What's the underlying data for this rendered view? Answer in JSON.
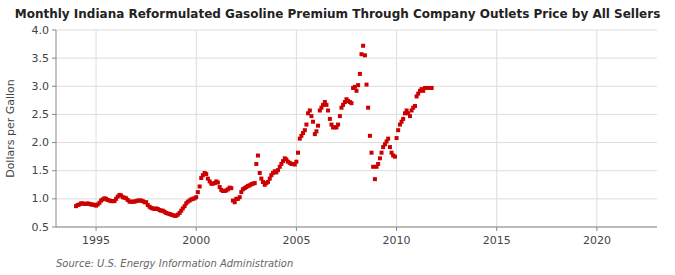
{
  "chart_data": {
    "type": "scatter",
    "title": "Monthly Indiana Reformulated Gasoline Premium Through Company Outlets Price by All Sellers",
    "ylabel": "Dollars per Gallon",
    "annotations": [
      "Source: U.S. Energy Information Administration"
    ],
    "color": "#cc0000",
    "marker": "square",
    "grid": true,
    "xlim": [
      1993.0,
      2023.0
    ],
    "ylim": [
      0.5,
      4.0
    ],
    "xticks": [
      1995,
      2000,
      2005,
      2010,
      2015,
      2020
    ],
    "yticks": [
      0.5,
      {
        "value": 1.0,
        "label": "1.0"
      },
      1.5,
      {
        "value": 2.0,
        "label": "2.0"
      },
      2.5,
      {
        "value": 3.0,
        "label": "3.0"
      },
      3.5,
      {
        "value": 4.0,
        "label": "4.0"
      }
    ],
    "x": [
      1994.0,
      1994.08,
      1994.17,
      1994.25,
      1994.33,
      1994.42,
      1994.5,
      1994.58,
      1994.67,
      1994.75,
      1994.83,
      1994.92,
      1995.0,
      1995.08,
      1995.17,
      1995.25,
      1995.33,
      1995.42,
      1995.5,
      1995.58,
      1995.67,
      1995.75,
      1995.83,
      1995.92,
      1996.0,
      1996.08,
      1996.17,
      1996.25,
      1996.33,
      1996.42,
      1996.5,
      1996.58,
      1996.67,
      1996.75,
      1996.83,
      1996.92,
      1997.0,
      1997.08,
      1997.17,
      1997.25,
      1997.33,
      1997.42,
      1997.5,
      1997.58,
      1997.67,
      1997.75,
      1997.83,
      1997.92,
      1998.0,
      1998.08,
      1998.17,
      1998.25,
      1998.33,
      1998.42,
      1998.5,
      1998.58,
      1998.67,
      1998.75,
      1998.83,
      1998.92,
      1999.0,
      1999.08,
      1999.17,
      1999.25,
      1999.33,
      1999.42,
      1999.5,
      1999.58,
      1999.67,
      1999.75,
      1999.83,
      1999.92,
      2000.0,
      2000.08,
      2000.17,
      2000.25,
      2000.33,
      2000.42,
      2000.5,
      2000.58,
      2000.67,
      2000.75,
      2000.83,
      2000.92,
      2001.0,
      2001.08,
      2001.17,
      2001.25,
      2001.33,
      2001.42,
      2001.5,
      2001.58,
      2001.67,
      2001.75,
      2001.83,
      2001.92,
      2002.0,
      2002.08,
      2002.17,
      2002.25,
      2002.33,
      2002.42,
      2002.5,
      2002.58,
      2002.67,
      2002.75,
      2002.83,
      2002.92,
      2003.0,
      2003.08,
      2003.17,
      2003.25,
      2003.33,
      2003.42,
      2003.5,
      2003.58,
      2003.67,
      2003.75,
      2003.83,
      2003.92,
      2004.0,
      2004.08,
      2004.17,
      2004.25,
      2004.33,
      2004.42,
      2004.5,
      2004.58,
      2004.67,
      2004.75,
      2004.83,
      2004.92,
      2005.0,
      2005.08,
      2005.17,
      2005.25,
      2005.33,
      2005.42,
      2005.5,
      2005.58,
      2005.67,
      2005.75,
      2005.83,
      2005.92,
      2006.0,
      2006.08,
      2006.17,
      2006.25,
      2006.33,
      2006.42,
      2006.5,
      2006.58,
      2006.67,
      2006.75,
      2006.83,
      2006.92,
      2007.0,
      2007.08,
      2007.17,
      2007.25,
      2007.33,
      2007.42,
      2007.5,
      2007.58,
      2007.67,
      2007.75,
      2007.83,
      2007.92,
      2008.0,
      2008.08,
      2008.17,
      2008.25,
      2008.33,
      2008.42,
      2008.5,
      2008.58,
      2008.67,
      2008.75,
      2008.83,
      2008.92,
      2009.0,
      2009.08,
      2009.17,
      2009.25,
      2009.33,
      2009.42,
      2009.5,
      2009.58,
      2009.67,
      2009.75,
      2009.83,
      2009.92,
      2010.0,
      2010.08,
      2010.17,
      2010.25,
      2010.33,
      2010.42,
      2010.5,
      2010.58,
      2010.67,
      2010.75,
      2010.83,
      2010.92,
      2011.0,
      2011.08,
      2011.17,
      2011.25,
      2011.33,
      2011.42,
      2011.5,
      2011.58,
      2011.67,
      2011.75
    ],
    "values": [
      0.87,
      0.89,
      0.9,
      0.92,
      0.92,
      0.91,
      0.91,
      0.92,
      0.91,
      0.9,
      0.9,
      0.89,
      0.88,
      0.9,
      0.93,
      0.97,
      0.99,
      1.01,
      1.0,
      0.98,
      0.97,
      0.96,
      0.96,
      0.96,
      1.0,
      1.04,
      1.07,
      1.06,
      1.03,
      1.02,
      1.01,
      0.98,
      0.95,
      0.95,
      0.95,
      0.95,
      0.96,
      0.97,
      0.97,
      0.97,
      0.96,
      0.94,
      0.94,
      0.89,
      0.86,
      0.84,
      0.83,
      0.82,
      0.83,
      0.82,
      0.8,
      0.79,
      0.79,
      0.77,
      0.75,
      0.74,
      0.73,
      0.72,
      0.71,
      0.7,
      0.7,
      0.72,
      0.75,
      0.79,
      0.83,
      0.87,
      0.92,
      0.95,
      0.97,
      0.99,
      1.0,
      1.01,
      1.03,
      1.12,
      1.22,
      1.37,
      1.42,
      1.46,
      1.44,
      1.36,
      1.31,
      1.27,
      1.27,
      1.28,
      1.31,
      1.29,
      1.21,
      1.16,
      1.14,
      1.14,
      1.15,
      1.17,
      1.2,
      1.19,
      0.97,
      0.94,
      1.0,
      1.0,
      1.03,
      1.12,
      1.17,
      1.19,
      1.21,
      1.23,
      1.24,
      1.26,
      1.27,
      1.28,
      1.62,
      1.77,
      1.46,
      1.36,
      1.3,
      1.25,
      1.28,
      1.3,
      1.36,
      1.42,
      1.46,
      1.49,
      1.47,
      1.51,
      1.57,
      1.62,
      1.67,
      1.72,
      1.7,
      1.66,
      1.64,
      1.62,
      1.62,
      1.61,
      1.66,
      1.82,
      2.07,
      2.12,
      2.17,
      2.22,
      2.32,
      2.52,
      2.57,
      2.47,
      2.37,
      2.15,
      2.2,
      2.3,
      2.57,
      2.62,
      2.67,
      2.72,
      2.67,
      2.57,
      2.42,
      2.32,
      2.27,
      2.27,
      2.27,
      2.32,
      2.47,
      2.62,
      2.67,
      2.72,
      2.77,
      2.74,
      2.72,
      2.7,
      2.97,
      2.99,
      2.92,
      3.02,
      3.22,
      3.57,
      3.72,
      3.55,
      3.03,
      2.62,
      2.12,
      1.82,
      1.57,
      1.35,
      1.57,
      1.62,
      1.72,
      1.82,
      1.92,
      1.97,
      2.02,
      2.07,
      1.92,
      1.82,
      1.77,
      1.75,
      2.08,
      2.22,
      2.32,
      2.37,
      2.42,
      2.52,
      2.57,
      2.52,
      2.47,
      2.57,
      2.62,
      2.65,
      2.82,
      2.87,
      2.92,
      2.95,
      2.92,
      2.97,
      2.97,
      2.97,
      2.97,
      2.97
    ]
  }
}
